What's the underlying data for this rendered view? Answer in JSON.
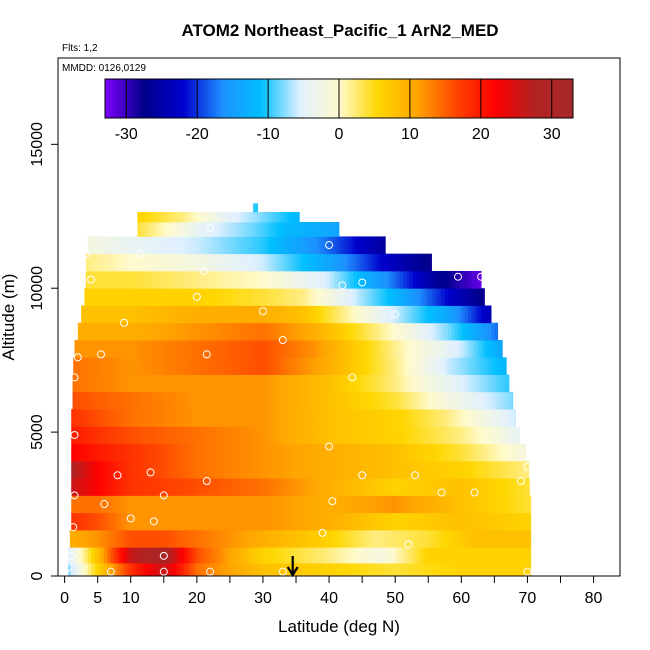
{
  "chart_data": {
    "type": "heatmap",
    "title": "ATOM2 Northeast_Pacific_1 ArN2_MED",
    "subtitle_flights": "Flts: 1,2",
    "subtitle_dates": "MMDD: 0126,0129",
    "xlabel": "Latitude (deg N)",
    "ylabel": "Altitude (m)",
    "xlim": [
      -1,
      84
    ],
    "ylim": [
      0,
      18000
    ],
    "x_ticks": [
      0,
      5,
      10,
      20,
      30,
      40,
      50,
      60,
      70,
      80
    ],
    "y_ticks": [
      0,
      5000,
      10000,
      15000
    ],
    "colorbar": {
      "range": [
        -33,
        33
      ],
      "ticks": [
        -30,
        -20,
        -10,
        0,
        10,
        20,
        30
      ],
      "colors": [
        "#7f00ff",
        "#00008b",
        "#0000cd",
        "#1e90ff",
        "#00bfff",
        "#e0f0ff",
        "#fffacd",
        "#ffd700",
        "#ffa500",
        "#ff4500",
        "#ff0000",
        "#b22222",
        "#a52a2a"
      ]
    },
    "altitude_bands": [
      {
        "alt": 200,
        "lat_min": 0.5,
        "lat_max": 70.5,
        "values": [
          [
            0.5,
            -8
          ],
          [
            5,
            6
          ],
          [
            10,
            18
          ],
          [
            15,
            26
          ],
          [
            20,
            14
          ],
          [
            30,
            8
          ],
          [
            40,
            6
          ],
          [
            50,
            4
          ],
          [
            60,
            6
          ],
          [
            70.5,
            6
          ]
        ]
      },
      {
        "alt": 700,
        "lat_min": 0.5,
        "lat_max": 70.5,
        "values": [
          [
            0.5,
            -6
          ],
          [
            5,
            8
          ],
          [
            10,
            26
          ],
          [
            15,
            30
          ],
          [
            20,
            16
          ],
          [
            30,
            6
          ],
          [
            40,
            2
          ],
          [
            48,
            -2
          ],
          [
            55,
            6
          ],
          [
            70.5,
            6
          ]
        ]
      },
      {
        "alt": 1300,
        "lat_min": 0.8,
        "lat_max": 70.5,
        "values": [
          [
            0.8,
            10
          ],
          [
            5,
            12
          ],
          [
            10,
            16
          ],
          [
            15,
            16
          ],
          [
            20,
            14
          ],
          [
            30,
            10
          ],
          [
            40,
            6
          ],
          [
            47,
            2
          ],
          [
            55,
            4
          ],
          [
            62,
            8
          ],
          [
            70.5,
            8
          ]
        ]
      },
      {
        "alt": 1900,
        "lat_min": 1,
        "lat_max": 70.5,
        "values": [
          [
            1,
            18
          ],
          [
            5,
            16
          ],
          [
            10,
            12
          ],
          [
            20,
            12
          ],
          [
            30,
            12
          ],
          [
            40,
            10
          ],
          [
            50,
            6
          ],
          [
            60,
            8
          ],
          [
            70.5,
            6
          ]
        ]
      },
      {
        "alt": 2500,
        "lat_min": 1,
        "lat_max": 70.5,
        "values": [
          [
            1,
            14
          ],
          [
            5,
            14
          ],
          [
            10,
            12
          ],
          [
            20,
            12
          ],
          [
            30,
            12
          ],
          [
            40,
            10
          ],
          [
            50,
            12
          ],
          [
            60,
            8
          ],
          [
            70.5,
            4
          ]
        ]
      },
      {
        "alt": 3100,
        "lat_min": 1,
        "lat_max": 70.3,
        "values": [
          [
            1,
            26
          ],
          [
            5,
            22
          ],
          [
            10,
            18
          ],
          [
            20,
            16
          ],
          [
            30,
            14
          ],
          [
            40,
            10
          ],
          [
            50,
            6
          ],
          [
            60,
            8
          ],
          [
            70.3,
            4
          ]
        ]
      },
      {
        "alt": 3700,
        "lat_min": 1,
        "lat_max": 70.2,
        "values": [
          [
            1,
            28
          ],
          [
            5,
            22
          ],
          [
            10,
            18
          ],
          [
            20,
            14
          ],
          [
            30,
            12
          ],
          [
            40,
            10
          ],
          [
            50,
            8
          ],
          [
            60,
            6
          ],
          [
            70.2,
            2
          ]
        ]
      },
      {
        "alt": 4300,
        "lat_min": 1,
        "lat_max": 69.8,
        "values": [
          [
            1,
            22
          ],
          [
            5,
            20
          ],
          [
            10,
            18
          ],
          [
            20,
            14
          ],
          [
            30,
            12
          ],
          [
            40,
            10
          ],
          [
            50,
            8
          ],
          [
            60,
            4
          ],
          [
            69.8,
            -2
          ]
        ]
      },
      {
        "alt": 4900,
        "lat_min": 1,
        "lat_max": 68.8,
        "values": [
          [
            1,
            20
          ],
          [
            5,
            18
          ],
          [
            10,
            16
          ],
          [
            20,
            14
          ],
          [
            30,
            12
          ],
          [
            40,
            8
          ],
          [
            50,
            6
          ],
          [
            60,
            2
          ],
          [
            68.8,
            -4
          ]
        ]
      },
      {
        "alt": 5500,
        "lat_min": 1,
        "lat_max": 68.2,
        "values": [
          [
            1,
            18
          ],
          [
            5,
            16
          ],
          [
            10,
            14
          ],
          [
            20,
            12
          ],
          [
            30,
            12
          ],
          [
            40,
            8
          ],
          [
            50,
            6
          ],
          [
            58,
            2
          ],
          [
            68.2,
            -6
          ]
        ]
      },
      {
        "alt": 6100,
        "lat_min": 1.2,
        "lat_max": 67.8,
        "values": [
          [
            1.2,
            16
          ],
          [
            10,
            14
          ],
          [
            20,
            12
          ],
          [
            30,
            12
          ],
          [
            40,
            8
          ],
          [
            50,
            4
          ],
          [
            58,
            -2
          ],
          [
            67.8,
            -8
          ]
        ]
      },
      {
        "alt": 6700,
        "lat_min": 1.2,
        "lat_max": 67.2,
        "values": [
          [
            1.2,
            14
          ],
          [
            10,
            12
          ],
          [
            20,
            12
          ],
          [
            30,
            12
          ],
          [
            40,
            8
          ],
          [
            50,
            2
          ],
          [
            58,
            -4
          ],
          [
            67.2,
            -10
          ]
        ]
      },
      {
        "alt": 7300,
        "lat_min": 1.3,
        "lat_max": 66.8,
        "values": [
          [
            1.3,
            14
          ],
          [
            10,
            12
          ],
          [
            20,
            14
          ],
          [
            30,
            16
          ],
          [
            40,
            10
          ],
          [
            50,
            2
          ],
          [
            58,
            -6
          ],
          [
            66.8,
            -12
          ]
        ]
      },
      {
        "alt": 7900,
        "lat_min": 1.5,
        "lat_max": 66.2,
        "values": [
          [
            1.5,
            12
          ],
          [
            10,
            12
          ],
          [
            20,
            14
          ],
          [
            30,
            16
          ],
          [
            38,
            12
          ],
          [
            45,
            6
          ],
          [
            52,
            0
          ],
          [
            60,
            -6
          ],
          [
            66.2,
            -14
          ]
        ]
      },
      {
        "alt": 8500,
        "lat_min": 2,
        "lat_max": 65.5,
        "values": [
          [
            2,
            10
          ],
          [
            10,
            10
          ],
          [
            20,
            12
          ],
          [
            30,
            14
          ],
          [
            38,
            10
          ],
          [
            45,
            4
          ],
          [
            52,
            -2
          ],
          [
            58,
            -8
          ],
          [
            65.5,
            -18
          ]
        ]
      },
      {
        "alt": 9100,
        "lat_min": 2.5,
        "lat_max": 64.5,
        "values": [
          [
            2.5,
            8
          ],
          [
            10,
            8
          ],
          [
            20,
            10
          ],
          [
            30,
            10
          ],
          [
            36,
            8
          ],
          [
            42,
            2
          ],
          [
            50,
            -6
          ],
          [
            58,
            -14
          ],
          [
            64.5,
            -24
          ]
        ]
      },
      {
        "alt": 9700,
        "lat_min": 3,
        "lat_max": 63.5,
        "values": [
          [
            3,
            6
          ],
          [
            10,
            6
          ],
          [
            20,
            6
          ],
          [
            30,
            4
          ],
          [
            36,
            2
          ],
          [
            42,
            -4
          ],
          [
            50,
            -12
          ],
          [
            58,
            -22
          ],
          [
            63.5,
            -28
          ]
        ]
      },
      {
        "alt": 10300,
        "lat_min": 3.2,
        "lat_max": 63,
        "values": [
          [
            3.2,
            4
          ],
          [
            10,
            4
          ],
          [
            20,
            2
          ],
          [
            30,
            0
          ],
          [
            40,
            -6
          ],
          [
            50,
            -18
          ],
          [
            56,
            -26
          ],
          [
            63,
            -32
          ]
        ]
      },
      {
        "alt": 10900,
        "lat_min": 3.2,
        "lat_max": 55.5,
        "values": [
          [
            3.2,
            2
          ],
          [
            10,
            0
          ],
          [
            20,
            -2
          ],
          [
            30,
            -6
          ],
          [
            40,
            -14
          ],
          [
            48,
            -22
          ],
          [
            55.5,
            -28
          ]
        ]
      },
      {
        "alt": 11500,
        "lat_min": 3.5,
        "lat_max": 48.5,
        "values": [
          [
            3.5,
            -2
          ],
          [
            10,
            -4
          ],
          [
            20,
            -6
          ],
          [
            30,
            -10
          ],
          [
            40,
            -18
          ],
          [
            48.5,
            -26
          ]
        ]
      },
      {
        "alt": 12100,
        "lat_min": 11,
        "lat_max": 41.5,
        "values": [
          [
            11,
            4
          ],
          [
            20,
            -4
          ],
          [
            28,
            -8
          ],
          [
            34,
            -12
          ],
          [
            41.5,
            -14
          ]
        ]
      },
      {
        "alt": 12500,
        "lat_min": 11,
        "lat_max": 35.5,
        "values": [
          [
            11,
            6
          ],
          [
            18,
            2
          ],
          [
            24,
            -4
          ],
          [
            30,
            -8
          ],
          [
            35.5,
            -12
          ]
        ]
      },
      {
        "alt": 12800,
        "lat_min": 28.5,
        "lat_max": 29.2,
        "values": [
          [
            28.5,
            -10
          ],
          [
            29.2,
            -10
          ]
        ]
      }
    ],
    "sample_points": [
      [
        0.6,
        300
      ],
      [
        1,
        700
      ],
      [
        7,
        150
      ],
      [
        15,
        150
      ],
      [
        22,
        150
      ],
      [
        33,
        150
      ],
      [
        70,
        150
      ],
      [
        15,
        700
      ],
      [
        1.3,
        1700
      ],
      [
        13.5,
        1900
      ],
      [
        10,
        2000
      ],
      [
        39,
        1500
      ],
      [
        52,
        1100
      ],
      [
        1.5,
        2800
      ],
      [
        6,
        2500
      ],
      [
        15,
        2800
      ],
      [
        21.5,
        3300
      ],
      [
        40.5,
        2600
      ],
      [
        57,
        2900
      ],
      [
        62,
        2900
      ],
      [
        69,
        3300
      ],
      [
        70,
        3800
      ],
      [
        8,
        3500
      ],
      [
        13,
        3600
      ],
      [
        45,
        3500
      ],
      [
        53,
        3500
      ],
      [
        1.5,
        4900
      ],
      [
        40,
        4500
      ],
      [
        1.5,
        6900
      ],
      [
        43.5,
        6900
      ],
      [
        2,
        7600
      ],
      [
        5.5,
        7700
      ],
      [
        21.5,
        7700
      ],
      [
        9,
        8800
      ],
      [
        33,
        8200
      ],
      [
        30,
        9200
      ],
      [
        50,
        9100
      ],
      [
        20,
        9700
      ],
      [
        4,
        10300
      ],
      [
        11.5,
        11200
      ],
      [
        3.3,
        11200
      ],
      [
        21,
        10600
      ],
      [
        42,
        10100
      ],
      [
        45,
        10200
      ],
      [
        59.5,
        10400
      ],
      [
        63,
        10400
      ],
      [
        40,
        11500
      ],
      [
        22,
        12100
      ]
    ],
    "arrow_marker_lat": 34.5,
    "grid": false,
    "legend_placement": "top-center colorbar"
  }
}
